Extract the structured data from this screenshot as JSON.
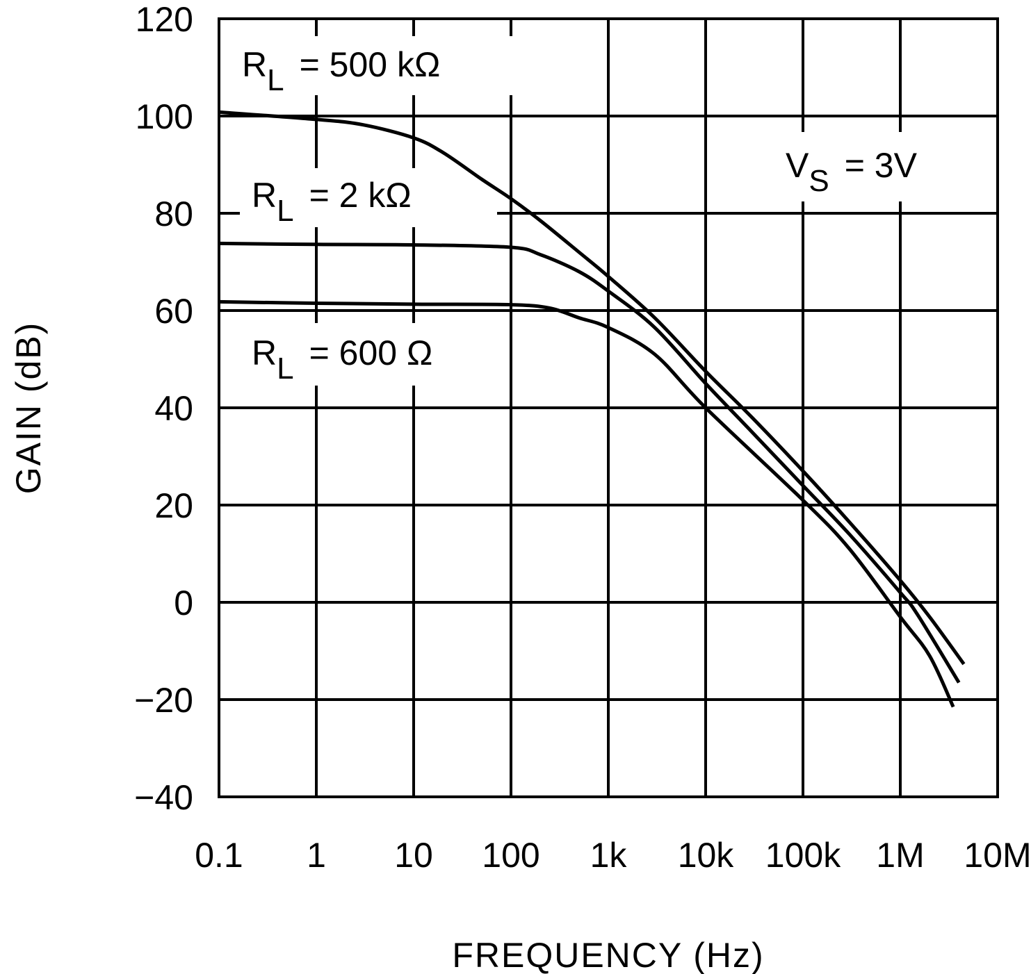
{
  "chart_data": {
    "type": "line",
    "xlabel": "FREQUENCY (Hz)",
    "ylabel": "GAIN (dB)",
    "x_scale": "log",
    "xlim": [
      0.1,
      10000000
    ],
    "ylim": [
      -40,
      120
    ],
    "grid": true,
    "x_ticks": [
      {
        "value": 0.1,
        "label": "0.1"
      },
      {
        "value": 1,
        "label": "1"
      },
      {
        "value": 10,
        "label": "10"
      },
      {
        "value": 100,
        "label": "100"
      },
      {
        "value": 1000,
        "label": "1k"
      },
      {
        "value": 10000,
        "label": "10k"
      },
      {
        "value": 100000,
        "label": "100k"
      },
      {
        "value": 1000000,
        "label": "1M"
      },
      {
        "value": 10000000,
        "label": "10M"
      }
    ],
    "y_ticks": [
      {
        "value": 120,
        "label": "120"
      },
      {
        "value": 100,
        "label": "100"
      },
      {
        "value": 80,
        "label": "80"
      },
      {
        "value": 60,
        "label": "60"
      },
      {
        "value": 40,
        "label": "40"
      },
      {
        "value": 20,
        "label": "20"
      },
      {
        "value": 0,
        "label": "0"
      },
      {
        "value": -20,
        "label": "-20"
      },
      {
        "value": -40,
        "label": "-40"
      }
    ],
    "series": [
      {
        "name": "R_L = 500 kΩ",
        "color": "#000000",
        "points": [
          [
            0.1,
            100.8
          ],
          [
            1,
            99.3
          ],
          [
            3,
            98.2
          ],
          [
            10,
            95.5
          ],
          [
            20,
            92.5
          ],
          [
            50,
            87
          ],
          [
            100,
            83
          ],
          [
            200,
            78.5
          ],
          [
            500,
            72
          ],
          [
            1000,
            67
          ],
          [
            3000,
            58.5
          ],
          [
            10000,
            47.5
          ],
          [
            30000,
            38
          ],
          [
            100000,
            27
          ],
          [
            300000,
            16.5
          ],
          [
            1000000,
            4.5
          ],
          [
            2000000,
            -3
          ],
          [
            4500000,
            -12.7
          ]
        ]
      },
      {
        "name": "R_L = 2 kΩ",
        "color": "#000000",
        "points": [
          [
            0.1,
            73.8
          ],
          [
            1,
            73.6
          ],
          [
            10,
            73.5
          ],
          [
            100,
            73
          ],
          [
            200,
            71.5
          ],
          [
            500,
            68
          ],
          [
            1000,
            64
          ],
          [
            3000,
            56.5
          ],
          [
            10000,
            45
          ],
          [
            30000,
            35
          ],
          [
            100000,
            24
          ],
          [
            300000,
            14
          ],
          [
            1000000,
            2
          ],
          [
            1500000,
            -2.5
          ],
          [
            4000000,
            -16.5
          ]
        ]
      },
      {
        "name": "R_L = 600 Ω",
        "color": "#000000",
        "points": [
          [
            0.1,
            61.8
          ],
          [
            1,
            61.5
          ],
          [
            10,
            61.3
          ],
          [
            100,
            61.2
          ],
          [
            250,
            60.5
          ],
          [
            500,
            58.5
          ],
          [
            1000,
            56.5
          ],
          [
            3000,
            51
          ],
          [
            10000,
            40
          ],
          [
            100000,
            21
          ],
          [
            300000,
            11
          ],
          [
            1000000,
            -3
          ],
          [
            2000000,
            -11
          ],
          [
            3500000,
            -21.5
          ]
        ]
      }
    ],
    "annotations": {
      "rl500k": {
        "main": "R",
        "sub": "L",
        "rest": "=  500 kΩ"
      },
      "rl2k": {
        "main": "R",
        "sub": "L",
        "rest": "=  2 kΩ"
      },
      "rl600": {
        "main": "R",
        "sub": "L",
        "rest": "=  600 Ω"
      },
      "vs": {
        "main": "V",
        "sub": "S",
        "rest": "=  3V"
      }
    }
  }
}
